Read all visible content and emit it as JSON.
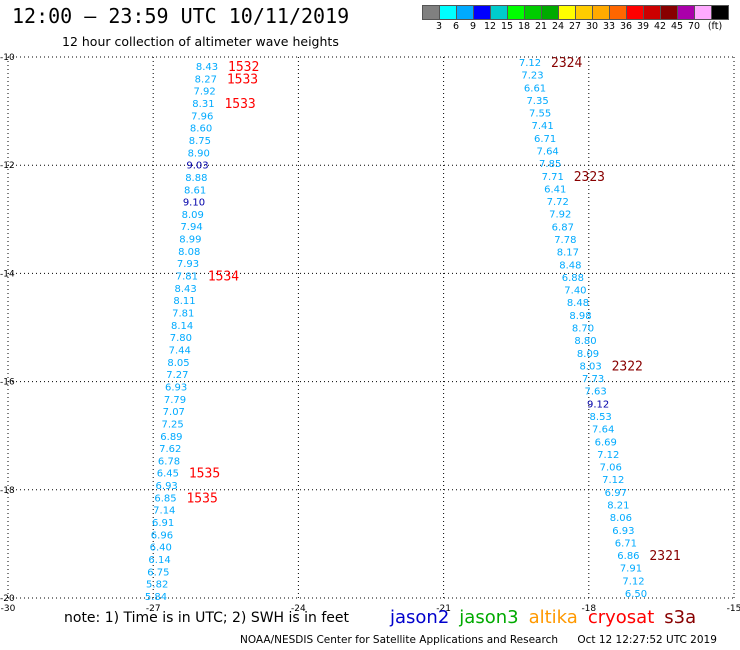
{
  "header": {
    "title": "12:00 – 23:59 UTC 10/11/2019",
    "subtitle": "12 hour collection of altimeter wave heights"
  },
  "legend": {
    "colors": [
      "#808080",
      "#00ffff",
      "#00aaff",
      "#0000ff",
      "#00cccc",
      "#00ff00",
      "#00cc00",
      "#00aa00",
      "#ffff00",
      "#ffcc00",
      "#ffaa00",
      "#ff6600",
      "#ff0000",
      "#cc0000",
      "#880000",
      "#aa00aa",
      "#ffaaff",
      "#000000"
    ],
    "labels": [
      "3",
      "6",
      "9",
      "12",
      "15",
      "18",
      "21",
      "24",
      "27",
      "30",
      "33",
      "36",
      "39",
      "42",
      "45",
      "70",
      "(ft)"
    ]
  },
  "map": {
    "lon_range": [
      -30,
      -15
    ],
    "lat_range": [
      -20,
      -10
    ],
    "lon_ticks": [
      "-30",
      "-27",
      "-24",
      "-21",
      "-18",
      "-15"
    ],
    "lat_ticks": [
      "-10",
      "-12",
      "-14",
      "-16",
      "-18",
      "-20"
    ],
    "tracks": [
      {
        "color": "#00aaff",
        "values": [
          "8.43",
          "8.27",
          "7.92",
          "8.31",
          "7.96",
          "8.60",
          "8.75",
          "8.90",
          "9.03",
          "8.88",
          "8.61",
          "9.10",
          "8.09",
          "7.94",
          "8.99",
          "8.08",
          "7.93",
          "7.81",
          "8.43",
          "8.11",
          "7.81",
          "8.14",
          "7.80",
          "7.44",
          "8.05",
          "7.27",
          "6.93",
          "7.79",
          "7.07",
          "7.25",
          "6.89",
          "7.62",
          "6.78",
          "6.45",
          "6.93",
          "6.85",
          "7.14",
          "6.91",
          "6.96",
          "6.40",
          "6.14",
          "6.75",
          "5.82",
          "5.84"
        ],
        "dark_blue": [
          "9.03",
          "9.10"
        ],
        "time_labels": [
          {
            "text": "1532",
            "after": "8.43",
            "color": "#ff0000"
          },
          {
            "text": "1533",
            "after": "8.27",
            "color": "#ff0000"
          },
          {
            "text": "1533",
            "after": "8.31",
            "color": "#ff0000"
          },
          {
            "text": "1534",
            "after": "7.81",
            "color": "#ff0000"
          },
          {
            "text": "1535",
            "after": "6.45",
            "color": "#ff0000"
          },
          {
            "text": "1535",
            "after": "6.85",
            "color": "#ff0000"
          }
        ]
      },
      {
        "color": "#00aaff",
        "values": [
          "7.12",
          "7.23",
          "6.61",
          "7.35",
          "7.55",
          "7.41",
          "6.71",
          "7.64",
          "7.85",
          "7.71",
          "6.41",
          "7.72",
          "7.92",
          "6.87",
          "7.78",
          "8.17",
          "8.48",
          "6.88",
          "7.40",
          "8.48",
          "8.98",
          "8.70",
          "8.80",
          "8.09",
          "8.03",
          "7.73",
          "7.63",
          "9.12",
          "8.53",
          "7.64",
          "6.69",
          "7.12",
          "7.06",
          "7.12",
          "6.97",
          "8.21",
          "8.06",
          "6.93",
          "6.71",
          "6.86",
          "7.91",
          "7.12",
          "6.50"
        ],
        "dark_blue": [
          "9.12"
        ],
        "time_labels": [
          {
            "text": "2324",
            "after": "7.12",
            "color": "#880000"
          },
          {
            "text": "2323",
            "after": "7.71",
            "color": "#880000"
          },
          {
            "text": "2322",
            "after": "8.03",
            "color": "#880000"
          },
          {
            "text": "2321",
            "after": "6.86",
            "color": "#880000"
          }
        ]
      }
    ]
  },
  "note": "note:  1) Time is in UTC; 2) SWH is in feet",
  "satellites": [
    {
      "name": "jason2",
      "color": "#0000cc"
    },
    {
      "name": "jason3",
      "color": "#00aa00"
    },
    {
      "name": "altika",
      "color": "#ff9900"
    },
    {
      "name": "cryosat",
      "color": "#ff0000"
    },
    {
      "name": "s3a",
      "color": "#880000"
    }
  ],
  "footer": {
    "credit": "NOAA/NESDIS Center for Satellite Applications and Research",
    "timestamp": "Oct 12 12:27:52 UTC 2019"
  }
}
